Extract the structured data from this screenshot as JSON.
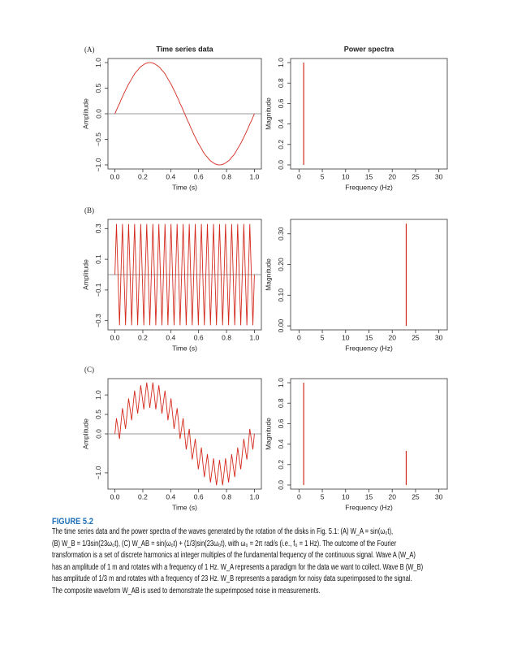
{
  "figure": {
    "panel_labels": [
      "(A)",
      "(B)",
      "(C)"
    ],
    "label": "FIGURE 5.2",
    "caption": [
      "The time series data and the power spectra of the waves generated by the rotation of the disks in Fig. 5.1: (A) W_A = sin(ω₀t),",
      "(B) W_B = 1/3sin(23ω₀t), (C) W_AB = sin(ω₀t) + (1/3)sin(23ω₀t), with ω₀ = 2π rad/s (i.e., f₀ = 1 Hz). The outcome of the Fourier",
      "transformation is a set of discrete harmonics at integer multiples of the fundamental frequency of the continuous signal. Wave A (W_A)",
      "has an amplitude of 1 m and rotates with a frequency of 1 Hz. W_A represents a paradigm for the data we want to collect. Wave B (W_B)",
      "has amplitude of 1/3 m and rotates with a frequency of 23 Hz. W_B represents a paradigm for noisy data superimposed to the signal.",
      "The composite waveform W_AB is used to demonstrate the superimposed noise in measurements."
    ]
  },
  "chart_data": [
    {
      "type": "line",
      "title": "Time series data",
      "x_label": "Time (s)",
      "y_label": "Amplitude",
      "color": "#d42a1e",
      "hline": 0,
      "x": [
        0,
        0.011,
        0.022,
        0.033,
        0.043,
        0.054,
        0.065,
        0.076,
        0.087,
        0.098,
        0.109,
        0.12,
        0.13,
        0.141,
        0.152,
        0.163,
        0.174,
        0.185,
        0.196,
        0.207,
        0.217,
        0.228,
        0.239,
        0.25,
        0.261,
        0.272,
        0.283,
        0.293,
        0.304,
        0.315,
        0.326,
        0.337,
        0.348,
        0.359,
        0.37,
        0.38,
        0.391,
        0.402,
        0.413,
        0.424,
        0.435,
        0.446,
        0.457,
        0.467,
        0.478,
        0.489,
        0.5,
        0.511,
        0.522,
        0.533,
        0.543,
        0.554,
        0.565,
        0.576,
        0.587,
        0.598,
        0.609,
        0.62,
        0.63,
        0.641,
        0.652,
        0.663,
        0.674,
        0.685,
        0.696,
        0.707,
        0.717,
        0.728,
        0.739,
        0.75,
        0.761,
        0.772,
        0.783,
        0.793,
        0.804,
        0.815,
        0.826,
        0.837,
        0.848,
        0.859,
        0.87,
        0.88,
        0.891,
        0.902,
        0.913,
        0.924,
        0.935,
        0.946,
        0.957,
        0.967,
        0.978,
        0.989,
        1
      ],
      "values": [
        0,
        0.07,
        0.14,
        0.2,
        0.27,
        0.33,
        0.4,
        0.46,
        0.52,
        0.58,
        0.63,
        0.68,
        0.73,
        0.78,
        0.82,
        0.85,
        0.89,
        0.92,
        0.94,
        0.96,
        0.98,
        0.99,
        1,
        1,
        1,
        0.99,
        0.98,
        0.96,
        0.94,
        0.92,
        0.89,
        0.85,
        0.82,
        0.78,
        0.73,
        0.68,
        0.63,
        0.58,
        0.52,
        0.46,
        0.4,
        0.33,
        0.27,
        0.2,
        0.14,
        0.07,
        0,
        -0.07,
        -0.14,
        -0.2,
        -0.27,
        -0.33,
        -0.4,
        -0.46,
        -0.52,
        -0.58,
        -0.63,
        -0.68,
        -0.73,
        -0.78,
        -0.82,
        -0.85,
        -0.89,
        -0.92,
        -0.94,
        -0.96,
        -0.98,
        -0.99,
        -1,
        -1,
        -1,
        -0.99,
        -0.98,
        -0.96,
        -0.94,
        -0.92,
        -0.89,
        -0.85,
        -0.82,
        -0.78,
        -0.73,
        -0.68,
        -0.63,
        -0.58,
        -0.52,
        -0.46,
        -0.4,
        -0.33,
        -0.27,
        -0.2,
        -0.14,
        -0.07,
        0
      ],
      "xlim": [
        -0.05,
        1.05
      ],
      "xticks": [
        {
          "value": 0,
          "label": "0.0"
        },
        {
          "value": 0.2,
          "label": "0.2"
        },
        {
          "value": 0.4,
          "label": "0.4"
        },
        {
          "value": 0.6,
          "label": "0.6"
        },
        {
          "value": 0.8,
          "label": "0.8"
        },
        {
          "value": 1,
          "label": "1.0"
        }
      ],
      "ylim": [
        -1.08,
        1.08
      ],
      "yticks": [
        {
          "value": -1,
          "label": "−1.0"
        },
        {
          "value": -0.5,
          "label": "−0.5"
        },
        {
          "value": 0,
          "label": "0.0"
        },
        {
          "value": 0.5,
          "label": "0.5"
        },
        {
          "value": 1,
          "label": "1.0"
        }
      ]
    },
    {
      "type": "stem",
      "title": "Power spectra",
      "x_label": "Frequency (Hz)",
      "y_label": "Magnitude",
      "color": "#d42a1e",
      "x": [
        1
      ],
      "values": [
        1
      ],
      "xlim": [
        -1.8,
        31.8
      ],
      "xticks": [
        0,
        5,
        10,
        15,
        20,
        25,
        30
      ],
      "ylim": [
        -0.04,
        1.04
      ],
      "yticks": [
        {
          "value": 0,
          "label": "0.0"
        },
        {
          "value": 0.2,
          "label": "0.2"
        },
        {
          "value": 0.4,
          "label": "0.4"
        },
        {
          "value": 0.6,
          "label": "0.6"
        },
        {
          "value": 0.8,
          "label": "0.8"
        },
        {
          "value": 1,
          "label": "1.0"
        }
      ]
    },
    {
      "type": "line",
      "x_label": "Time (s)",
      "y_label": "Amplitude",
      "color": "#d42a1e",
      "hline": 0,
      "x": [
        0,
        0.011,
        0.022,
        0.033,
        0.043,
        0.054,
        0.065,
        0.076,
        0.087,
        0.098,
        0.109,
        0.12,
        0.13,
        0.141,
        0.152,
        0.163,
        0.174,
        0.185,
        0.196,
        0.207,
        0.217,
        0.228,
        0.239,
        0.25,
        0.261,
        0.272,
        0.283,
        0.293,
        0.304,
        0.315,
        0.326,
        0.337,
        0.348,
        0.359,
        0.37,
        0.38,
        0.391,
        0.402,
        0.413,
        0.424,
        0.435,
        0.446,
        0.457,
        0.467,
        0.478,
        0.489,
        0.5,
        0.511,
        0.522,
        0.533,
        0.543,
        0.554,
        0.565,
        0.576,
        0.587,
        0.598,
        0.609,
        0.62,
        0.63,
        0.641,
        0.652,
        0.663,
        0.674,
        0.685,
        0.696,
        0.707,
        0.717,
        0.728,
        0.739,
        0.75,
        0.761,
        0.772,
        0.783,
        0.793,
        0.804,
        0.815,
        0.826,
        0.837,
        0.848,
        0.859,
        0.87,
        0.88,
        0.891,
        0.902,
        0.913,
        0.924,
        0.935,
        0.946,
        0.957,
        0.967,
        0.978,
        0.989,
        1
      ],
      "values": [
        0,
        0.33,
        0,
        -0.33,
        0,
        0.33,
        0,
        -0.33,
        0,
        0.33,
        0,
        -0.33,
        0,
        0.33,
        0,
        -0.33,
        0,
        0.33,
        0,
        -0.33,
        0,
        0.33,
        0,
        -0.33,
        0,
        0.33,
        0,
        -0.33,
        0,
        0.33,
        0,
        -0.33,
        0,
        0.33,
        0,
        -0.33,
        0,
        0.33,
        0,
        -0.33,
        0,
        0.33,
        0,
        -0.33,
        0,
        0.33,
        0,
        -0.33,
        0,
        0.33,
        0,
        -0.33,
        0,
        0.33,
        0,
        -0.33,
        0,
        0.33,
        0,
        -0.33,
        0,
        0.33,
        0,
        -0.33,
        0,
        0.33,
        0,
        -0.33,
        0,
        0.33,
        0,
        -0.33,
        0,
        0.33,
        0,
        -0.33,
        0,
        0.33,
        0,
        -0.33,
        0,
        0.33,
        0,
        -0.33,
        0,
        0.33,
        0,
        -0.33,
        0,
        0.33,
        0,
        -0.33,
        0
      ],
      "xlim": [
        -0.05,
        1.05
      ],
      "xticks": [
        {
          "value": 0,
          "label": "0.0"
        },
        {
          "value": 0.2,
          "label": "0.2"
        },
        {
          "value": 0.4,
          "label": "0.4"
        },
        {
          "value": 0.6,
          "label": "0.6"
        },
        {
          "value": 0.8,
          "label": "0.8"
        },
        {
          "value": 1,
          "label": "1.0"
        }
      ],
      "ylim": [
        -0.36,
        0.36
      ],
      "yticks": [
        {
          "value": -0.3,
          "label": "−0.3"
        },
        {
          "value": -0.1,
          "label": "−0.1"
        },
        {
          "value": 0.1,
          "label": "0.1"
        },
        {
          "value": 0.3,
          "label": "0.3"
        }
      ]
    },
    {
      "type": "stem",
      "x_label": "Frequency (Hz)",
      "y_label": "Magnitude",
      "color": "#d42a1e",
      "x": [
        23
      ],
      "values": [
        0.333
      ],
      "xlim": [
        -1.8,
        31.8
      ],
      "xticks": [
        0,
        5,
        10,
        15,
        20,
        25,
        30
      ],
      "ylim": [
        -0.013,
        0.347
      ],
      "yticks": [
        {
          "value": 0,
          "label": "0.00"
        },
        {
          "value": 0.1,
          "label": "0.10"
        },
        {
          "value": 0.2,
          "label": "0.20"
        },
        {
          "value": 0.3,
          "label": "0.30"
        }
      ]
    },
    {
      "type": "line",
      "x_label": "Time (s)",
      "y_label": "Amplitude",
      "color": "#d42a1e",
      "hline": 0,
      "x": [
        0,
        0.011,
        0.022,
        0.033,
        0.043,
        0.054,
        0.065,
        0.076,
        0.087,
        0.098,
        0.109,
        0.12,
        0.13,
        0.141,
        0.152,
        0.163,
        0.174,
        0.185,
        0.196,
        0.207,
        0.217,
        0.228,
        0.239,
        0.25,
        0.261,
        0.272,
        0.283,
        0.293,
        0.304,
        0.315,
        0.326,
        0.337,
        0.348,
        0.359,
        0.37,
        0.38,
        0.391,
        0.402,
        0.413,
        0.424,
        0.435,
        0.446,
        0.457,
        0.467,
        0.478,
        0.489,
        0.5,
        0.511,
        0.522,
        0.533,
        0.543,
        0.554,
        0.565,
        0.576,
        0.587,
        0.598,
        0.609,
        0.62,
        0.63,
        0.641,
        0.652,
        0.663,
        0.674,
        0.685,
        0.696,
        0.707,
        0.717,
        0.728,
        0.739,
        0.75,
        0.761,
        0.772,
        0.783,
        0.793,
        0.804,
        0.815,
        0.826,
        0.837,
        0.848,
        0.859,
        0.87,
        0.88,
        0.891,
        0.902,
        0.913,
        0.924,
        0.935,
        0.946,
        0.957,
        0.967,
        0.978,
        0.989,
        1
      ],
      "values": [
        0,
        0.4,
        0.14,
        -0.13,
        0.27,
        0.66,
        0.4,
        0.13,
        0.52,
        0.91,
        0.63,
        0.35,
        0.73,
        1.11,
        0.82,
        0.52,
        0.89,
        1.25,
        0.94,
        0.63,
        0.98,
        1.32,
        1,
        0.67,
        1,
        1.32,
        0.98,
        0.63,
        0.94,
        1.25,
        0.89,
        0.52,
        0.82,
        1.11,
        0.73,
        0.35,
        0.63,
        0.91,
        0.52,
        0.13,
        0.4,
        0.66,
        0.27,
        -0.13,
        0.14,
        0.4,
        0,
        -0.4,
        -0.14,
        0.13,
        -0.27,
        -0.66,
        -0.4,
        -0.13,
        -0.52,
        -0.91,
        -0.63,
        -0.35,
        -0.73,
        -1.11,
        -0.82,
        -0.52,
        -0.89,
        -1.25,
        -0.94,
        -0.63,
        -0.98,
        -1.32,
        -1,
        -0.67,
        -1,
        -1.32,
        -0.98,
        -0.63,
        -0.94,
        -1.25,
        -0.89,
        -0.52,
        -0.82,
        -1.11,
        -0.73,
        -0.35,
        -0.63,
        -0.91,
        -0.52,
        -0.13,
        -0.4,
        -0.66,
        -0.27,
        0.13,
        -0.14,
        -0.4,
        0
      ],
      "xlim": [
        -0.05,
        1.05
      ],
      "xticks": [
        {
          "value": 0,
          "label": "0.0"
        },
        {
          "value": 0.2,
          "label": "0.2"
        },
        {
          "value": 0.4,
          "label": "0.4"
        },
        {
          "value": 0.6,
          "label": "0.6"
        },
        {
          "value": 0.8,
          "label": "0.8"
        },
        {
          "value": 1,
          "label": "1.0"
        }
      ],
      "ylim": [
        -1.42,
        1.42
      ],
      "yticks": [
        {
          "value": -1,
          "label": "−1.0"
        },
        {
          "value": 0,
          "label": "0.0"
        },
        {
          "value": 0.5,
          "label": "0.5"
        },
        {
          "value": 1,
          "label": "1.0"
        }
      ]
    },
    {
      "type": "stem",
      "x_label": "Frequency (Hz)",
      "y_label": "Magnitude",
      "color": "#d42a1e",
      "x": [
        1,
        23
      ],
      "values": [
        1,
        0.333
      ],
      "xlim": [
        -1.8,
        31.8
      ],
      "xticks": [
        0,
        5,
        10,
        15,
        20,
        25,
        30
      ],
      "ylim": [
        -0.04,
        1.04
      ],
      "yticks": [
        {
          "value": 0,
          "label": "0.0"
        },
        {
          "value": 0.2,
          "label": "0.2"
        },
        {
          "value": 0.4,
          "label": "0.4"
        },
        {
          "value": 0.6,
          "label": "0.6"
        },
        {
          "value": 0.8,
          "label": "0.8"
        },
        {
          "value": 1,
          "label": "1.0"
        }
      ]
    }
  ]
}
